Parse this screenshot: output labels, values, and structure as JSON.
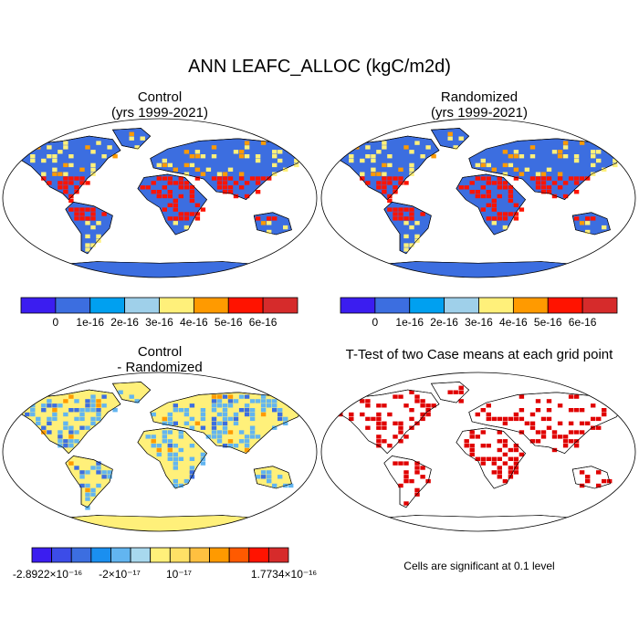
{
  "title": "ANN LEAFC_ALLOC (kgC/m2d)",
  "panels": {
    "control": {
      "title": "Control",
      "subtitle": "(yrs 1999-2021)"
    },
    "randomized": {
      "title": "Randomized",
      "subtitle": "(yrs 1999-2021)"
    },
    "difference": {
      "title": "Control",
      "subtitle": "- Randomized"
    },
    "ttest": {
      "title": "T-Test of two Case means at each grid point"
    }
  },
  "colorbar_top": {
    "colors": [
      "#3b1df0",
      "#3c6ee0",
      "#00a0f0",
      "#9fd0ea",
      "#fff07a",
      "#ff9a00",
      "#ff1300",
      "#d62b2b"
    ],
    "labels": [
      "0",
      "1e-16",
      "2e-16",
      "3e-16",
      "4e-16",
      "5e-16",
      "6e-16"
    ]
  },
  "colorbar_diff": {
    "colors": [
      "#3b1df0",
      "#3c4ce8",
      "#3c6ee0",
      "#1a8ff0",
      "#62b5f0",
      "#a8d8ee",
      "#fff07a",
      "#ffe066",
      "#ffc040",
      "#ff9a00",
      "#ff5a00",
      "#ff1300",
      "#d62b2b"
    ],
    "labels": [
      "-2.8922×10⁻¹⁶",
      "-2×10⁻¹⁷",
      "10⁻¹⁷",
      "1.7734×10⁻¹⁶"
    ]
  },
  "significance_note": "Cells are significant at 0.1 level",
  "map_colors": {
    "ocean": "#ffffff",
    "land_low": "#3c6ee0",
    "land_mid": "#fff07a",
    "land_high": "#ff1300",
    "diff_land": "#fff07a",
    "diff_neg": "#62b5f0",
    "significant": "#e00000",
    "outline": "#000000"
  }
}
